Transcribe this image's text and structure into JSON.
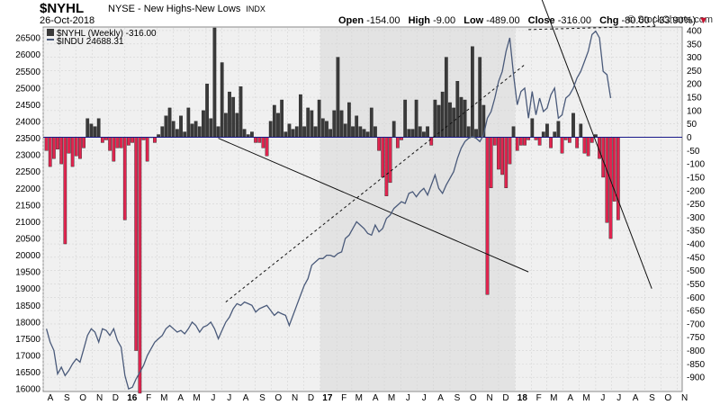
{
  "header": {
    "symbol": "$NYHL",
    "description": "NYSE - New Highs-New Lows",
    "type": "INDX",
    "date": "26-Oct-2018",
    "open_label": "Open",
    "open": "-154.00",
    "high_label": "High",
    "high": "-9.00",
    "low_label": "Low",
    "low": "-489.00",
    "close_label": "Close",
    "close": "-316.00",
    "chg_label": "Chg",
    "chg": "-80.00 (-33.90%)",
    "logo": "© StockCharts.com"
  },
  "legend": {
    "series1": "$NYHL (Weekly) -316.00",
    "series2": "$INDU 24688.31"
  },
  "colors": {
    "up_bar": "#3a3a3a",
    "down_bar": "#e0254f",
    "indu_line": "#4a5a7a",
    "zero_line": "#1a1a8a",
    "background": "#f0f0f0",
    "shaded_band": "#e3e3e3"
  },
  "chart_data": {
    "type": "bar",
    "title": "$NYHL NYSE - New Highs-New Lows",
    "right_axis": {
      "label": "",
      "range": [
        -950,
        410
      ],
      "ticks": [
        400,
        350,
        300,
        250,
        200,
        150,
        100,
        50,
        0,
        -50,
        -100,
        -150,
        -200,
        -250,
        -300,
        -350,
        -400,
        -450,
        -500,
        -550,
        -600,
        -650,
        -700,
        -750,
        -800,
        -850,
        -900
      ]
    },
    "left_axis": {
      "label": "",
      "range": [
        15950,
        26800
      ],
      "ticks": [
        26500,
        26000,
        25500,
        25000,
        24500,
        24000,
        23500,
        23000,
        22500,
        22000,
        21500,
        21000,
        20500,
        20000,
        19500,
        19000,
        18500,
        18000,
        17500,
        17000,
        16500,
        16000
      ]
    },
    "x_axis": {
      "start": "2015-08-01",
      "end": "2018-11-10",
      "ticks": [
        {
          "date": "2015-08-01",
          "label": "A"
        },
        {
          "date": "2015-09-01",
          "label": "S"
        },
        {
          "date": "2015-10-01",
          "label": "O"
        },
        {
          "date": "2015-11-01",
          "label": "N"
        },
        {
          "date": "2015-12-01",
          "label": "D"
        },
        {
          "date": "2016-01-01",
          "label": "16"
        },
        {
          "date": "2016-02-01",
          "label": "F"
        },
        {
          "date": "2016-03-01",
          "label": "M"
        },
        {
          "date": "2016-04-01",
          "label": "A"
        },
        {
          "date": "2016-05-01",
          "label": "M"
        },
        {
          "date": "2016-06-01",
          "label": "J"
        },
        {
          "date": "2016-07-01",
          "label": "J"
        },
        {
          "date": "2016-08-01",
          "label": "A"
        },
        {
          "date": "2016-09-01",
          "label": "S"
        },
        {
          "date": "2016-10-01",
          "label": "O"
        },
        {
          "date": "2016-11-01",
          "label": "N"
        },
        {
          "date": "2016-12-01",
          "label": "D"
        },
        {
          "date": "2017-01-01",
          "label": "17"
        },
        {
          "date": "2017-02-01",
          "label": "F"
        },
        {
          "date": "2017-03-01",
          "label": "M"
        },
        {
          "date": "2017-04-01",
          "label": "A"
        },
        {
          "date": "2017-05-01",
          "label": "M"
        },
        {
          "date": "2017-06-01",
          "label": "J"
        },
        {
          "date": "2017-07-01",
          "label": "J"
        },
        {
          "date": "2017-08-01",
          "label": "A"
        },
        {
          "date": "2017-09-01",
          "label": "S"
        },
        {
          "date": "2017-10-01",
          "label": "O"
        },
        {
          "date": "2017-11-01",
          "label": "N"
        },
        {
          "date": "2017-12-01",
          "label": "D"
        },
        {
          "date": "2018-01-01",
          "label": "18"
        },
        {
          "date": "2018-02-01",
          "label": "F"
        },
        {
          "date": "2018-03-01",
          "label": "M"
        },
        {
          "date": "2018-04-01",
          "label": "A"
        },
        {
          "date": "2018-05-01",
          "label": "M"
        },
        {
          "date": "2018-06-01",
          "label": "J"
        },
        {
          "date": "2018-07-01",
          "label": "J"
        },
        {
          "date": "2018-08-01",
          "label": "A"
        },
        {
          "date": "2018-09-01",
          "label": "S"
        },
        {
          "date": "2018-10-01",
          "label": "O"
        },
        {
          "date": "2018-11-01",
          "label": "N"
        }
      ]
    },
    "shaded_periods": [
      [
        "2017-01-01",
        "2018-01-01"
      ]
    ],
    "nyhl_first_week": "2015-08-07",
    "nyhl_weekly": [
      -50,
      -110,
      -80,
      -45,
      -100,
      -400,
      -60,
      -110,
      -70,
      -80,
      -40,
      70,
      50,
      40,
      70,
      -20,
      -10,
      -50,
      -90,
      -40,
      -40,
      -310,
      -30,
      -20,
      -800,
      -960,
      -10,
      -90,
      0,
      -20,
      10,
      40,
      80,
      110,
      60,
      30,
      80,
      20,
      110,
      50,
      60,
      40,
      100,
      200,
      70,
      410,
      40,
      280,
      90,
      170,
      150,
      90,
      190,
      30,
      10,
      20,
      -20,
      -20,
      -40,
      -70,
      60,
      120,
      90,
      140,
      20,
      50,
      30,
      40,
      160,
      40,
      110,
      100,
      40,
      140,
      70,
      60,
      30,
      100,
      300,
      100,
      50,
      130,
      40,
      80,
      40,
      30,
      20,
      110,
      40,
      -50,
      -150,
      -220,
      -170,
      60,
      -40,
      -10,
      140,
      30,
      30,
      140,
      40,
      20,
      40,
      -30,
      140,
      120,
      170,
      300,
      130,
      110,
      210,
      150,
      140,
      40,
      340,
      30,
      300,
      120,
      -590,
      -190,
      -30,
      -120,
      -140,
      -190,
      -100,
      40,
      -50,
      -30,
      -30,
      -10,
      70,
      -10,
      -30,
      20,
      50,
      -40,
      20,
      60,
      -60,
      -10,
      -20,
      90,
      -40,
      50,
      -60,
      -70,
      -20,
      10,
      -80,
      -150,
      -320,
      -380,
      -240,
      -310
    ],
    "trendlines": [
      {
        "x1": "2016-06-24",
        "y1": 23500,
        "x2": "2018-01-26",
        "y2": 19500
      },
      {
        "x1": "2018-01-19",
        "y1": 29000,
        "x2": "2018-09-14",
        "y2": 19000
      },
      {
        "x1": "2016-07-08",
        "y1": 18600,
        "x2": "2018-01-19",
        "y2": 25700
      },
      {
        "x1": "2018-01-26",
        "y1": 26750,
        "x2": "2018-09-21",
        "y2": 26850
      }
    ],
    "indu_weekly": [
      17800,
      17400,
      17150,
      16450,
      16650,
      16400,
      16550,
      16750,
      16900,
      16800,
      17200,
      17600,
      17800,
      17700,
      17400,
      17800,
      17750,
      17600,
      17800,
      17450,
      17250,
      16400,
      16000,
      16050,
      16300,
      16500,
      16700,
      17000,
      17200,
      17400,
      17500,
      17600,
      17800,
      17900,
      17800,
      17700,
      17750,
      17650,
      17800,
      18000,
      17900,
      17700,
      17850,
      17900,
      18000,
      17800,
      17500,
      17750,
      18000,
      18150,
      18400,
      18550,
      18500,
      18600,
      18550,
      18500,
      18300,
      18400,
      18450,
      18500,
      18350,
      18200,
      18300,
      18250,
      18200,
      17900,
      18200,
      18500,
      18800,
      19100,
      19300,
      19700,
      19800,
      19900,
      19900,
      20000,
      20000,
      19950,
      20050,
      20100,
      20500,
      20600,
      20800,
      21000,
      20900,
      20800,
      20650,
      20600,
      20900,
      20700,
      20800,
      21100,
      21200,
      21400,
      21500,
      21600,
      21550,
      21850,
      21900,
      21750,
      21900,
      22000,
      21800,
      22100,
      22400,
      22000,
      21850,
      22100,
      22300,
      22500,
      22900,
      23200,
      23400,
      23500,
      23550,
      23500,
      23400,
      23600,
      24100,
      24300,
      24700,
      25200,
      25500,
      26100,
      26500,
      25400,
      24500,
      24900,
      25000,
      24100,
      24900,
      24200,
      24700,
      24300,
      24400,
      24800,
      25000,
      24100,
      24200,
      24700,
      24800,
      25000,
      25300,
      25500,
      25800,
      26100,
      26600,
      26700,
      26500,
      25500,
      25400,
      24700
    ]
  }
}
